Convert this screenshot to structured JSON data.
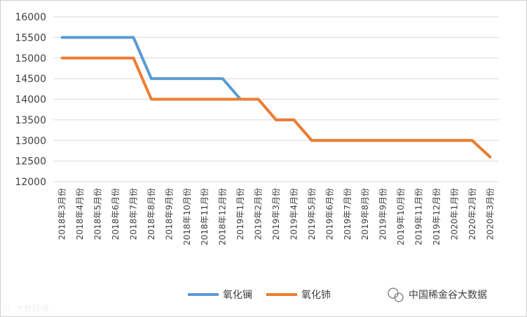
{
  "chart_data": {
    "type": "line",
    "title": "",
    "xlabel": "",
    "ylabel": "",
    "ylim": [
      12000,
      16000
    ],
    "yticks": [
      12000,
      12500,
      13000,
      13500,
      14000,
      14500,
      15000,
      15500,
      16000
    ],
    "grid": true,
    "legend_position": "bottom",
    "categories": [
      "2018年3月份",
      "2018年4月份",
      "2018年5月份",
      "2018年6月份",
      "2018年7月份",
      "2018年8月份",
      "2018年9月份",
      "2018年10月份",
      "2018年11月份",
      "2018年12月份",
      "2019年1月份",
      "2019年2月份",
      "2019年3月份",
      "2019年4月份",
      "2019年5月份",
      "2019年6月份",
      "2019年7月份",
      "2019年8月份",
      "2019年9月份",
      "2019年10月份",
      "2019年11月份",
      "2019年12月份",
      "2020年1月份",
      "2020年2月份",
      "2020年3月份"
    ],
    "series": [
      {
        "name": "氧化镧",
        "color": "#5b9bd5",
        "values": [
          15500,
          15500,
          15500,
          15500,
          15500,
          14500,
          14500,
          14500,
          14500,
          14500,
          14000,
          14000,
          13500,
          13500,
          13000,
          13000,
          13000,
          13000,
          13000,
          13000,
          13000,
          13000,
          13000,
          13000,
          12600
        ]
      },
      {
        "name": "氧化铈",
        "color": "#ed7d31",
        "values": [
          15000,
          15000,
          15000,
          15000,
          15000,
          14000,
          14000,
          14000,
          14000,
          14000,
          14000,
          14000,
          13500,
          13500,
          13000,
          13000,
          13000,
          13000,
          13000,
          13000,
          13000,
          13000,
          13000,
          13000,
          12600
        ]
      }
    ]
  },
  "watermark": {
    "source": "中国稀金谷大数据",
    "source_icon": "wechat-icon",
    "corner": "大数跨境"
  }
}
